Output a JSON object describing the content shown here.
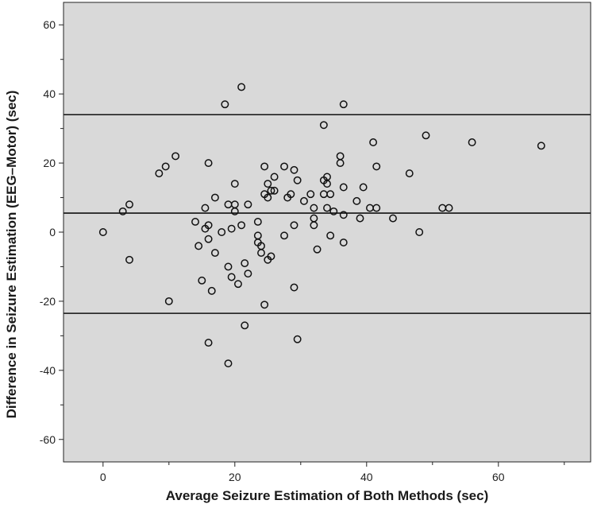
{
  "chart_data": {
    "type": "scatter",
    "title": "",
    "xlabel": "Average Seizure Estimation of Both Methods (sec)",
    "ylabel": "Difference in Seizure Estimation (EEG–Motor) (sec)",
    "xlim": [
      -6,
      74
    ],
    "ylim": [
      -66.5,
      66.5
    ],
    "x_ticks": [
      0,
      20,
      40,
      60
    ],
    "y_ticks": [
      -60,
      -40,
      -20,
      0,
      20,
      40,
      60
    ],
    "x_tick_labels": [
      "0",
      "20",
      "40",
      "60"
    ],
    "y_tick_labels": [
      "-60",
      "-40",
      "-20",
      "0",
      "20",
      "40",
      "60"
    ],
    "reference_lines": [
      {
        "name": "upper-limit-of-agreement",
        "y": 34
      },
      {
        "name": "mean-difference",
        "y": 5.5
      },
      {
        "name": "lower-limit-of-agreement",
        "y": -23.5
      }
    ],
    "background": "#d9d9d9",
    "marker_color": "#111111",
    "points": [
      [
        0,
        0
      ],
      [
        3,
        6
      ],
      [
        4,
        8
      ],
      [
        4,
        -8
      ],
      [
        8.5,
        17
      ],
      [
        9.5,
        19
      ],
      [
        10,
        -20
      ],
      [
        11,
        22
      ],
      [
        14,
        3
      ],
      [
        14.5,
        -4
      ],
      [
        15,
        -14
      ],
      [
        15.5,
        1
      ],
      [
        15.5,
        7
      ],
      [
        16,
        2
      ],
      [
        16,
        -2
      ],
      [
        16,
        20
      ],
      [
        16,
        -32
      ],
      [
        16.5,
        -17
      ],
      [
        17,
        10
      ],
      [
        17,
        -6
      ],
      [
        18,
        0
      ],
      [
        18.5,
        37
      ],
      [
        19,
        -10
      ],
      [
        19,
        8
      ],
      [
        19,
        -38
      ],
      [
        19.5,
        1
      ],
      [
        19.5,
        -13
      ],
      [
        20,
        14
      ],
      [
        20,
        8
      ],
      [
        20,
        6
      ],
      [
        20.5,
        -15
      ],
      [
        21,
        42
      ],
      [
        21,
        2
      ],
      [
        21.5,
        -9
      ],
      [
        21.5,
        -27
      ],
      [
        22,
        8
      ],
      [
        22,
        -12
      ],
      [
        23.5,
        3
      ],
      [
        23.5,
        -1
      ],
      [
        23.5,
        -3
      ],
      [
        24,
        -4
      ],
      [
        24,
        -6
      ],
      [
        24.5,
        11
      ],
      [
        24.5,
        19
      ],
      [
        24.5,
        -21
      ],
      [
        25,
        14
      ],
      [
        25,
        10
      ],
      [
        25,
        -8
      ],
      [
        25.5,
        12
      ],
      [
        25.5,
        -7
      ],
      [
        26,
        12
      ],
      [
        26,
        16
      ],
      [
        27.5,
        19
      ],
      [
        27.5,
        -1
      ],
      [
        28,
        10
      ],
      [
        28.5,
        11
      ],
      [
        29,
        18
      ],
      [
        29,
        2
      ],
      [
        29,
        -16
      ],
      [
        29.5,
        15
      ],
      [
        29.5,
        -31
      ],
      [
        30.5,
        9
      ],
      [
        31.5,
        11
      ],
      [
        32,
        4
      ],
      [
        32,
        7
      ],
      [
        32,
        2
      ],
      [
        32.5,
        -5
      ],
      [
        33.5,
        31
      ],
      [
        33.5,
        15
      ],
      [
        33.5,
        11
      ],
      [
        34,
        16
      ],
      [
        34,
        14
      ],
      [
        34,
        7
      ],
      [
        34.5,
        11
      ],
      [
        34.5,
        -1
      ],
      [
        35,
        6
      ],
      [
        36,
        22
      ],
      [
        36,
        20
      ],
      [
        36.5,
        13
      ],
      [
        36.5,
        5
      ],
      [
        36.5,
        -3
      ],
      [
        36.5,
        37
      ],
      [
        38.5,
        9
      ],
      [
        39,
        4
      ],
      [
        39.5,
        13
      ],
      [
        40.5,
        7
      ],
      [
        41,
        26
      ],
      [
        41.5,
        19
      ],
      [
        41.5,
        7
      ],
      [
        44,
        4
      ],
      [
        46.5,
        17
      ],
      [
        48,
        0
      ],
      [
        49,
        28
      ],
      [
        51.5,
        7
      ],
      [
        52.5,
        7
      ],
      [
        56,
        26
      ],
      [
        66.5,
        25
      ]
    ]
  }
}
